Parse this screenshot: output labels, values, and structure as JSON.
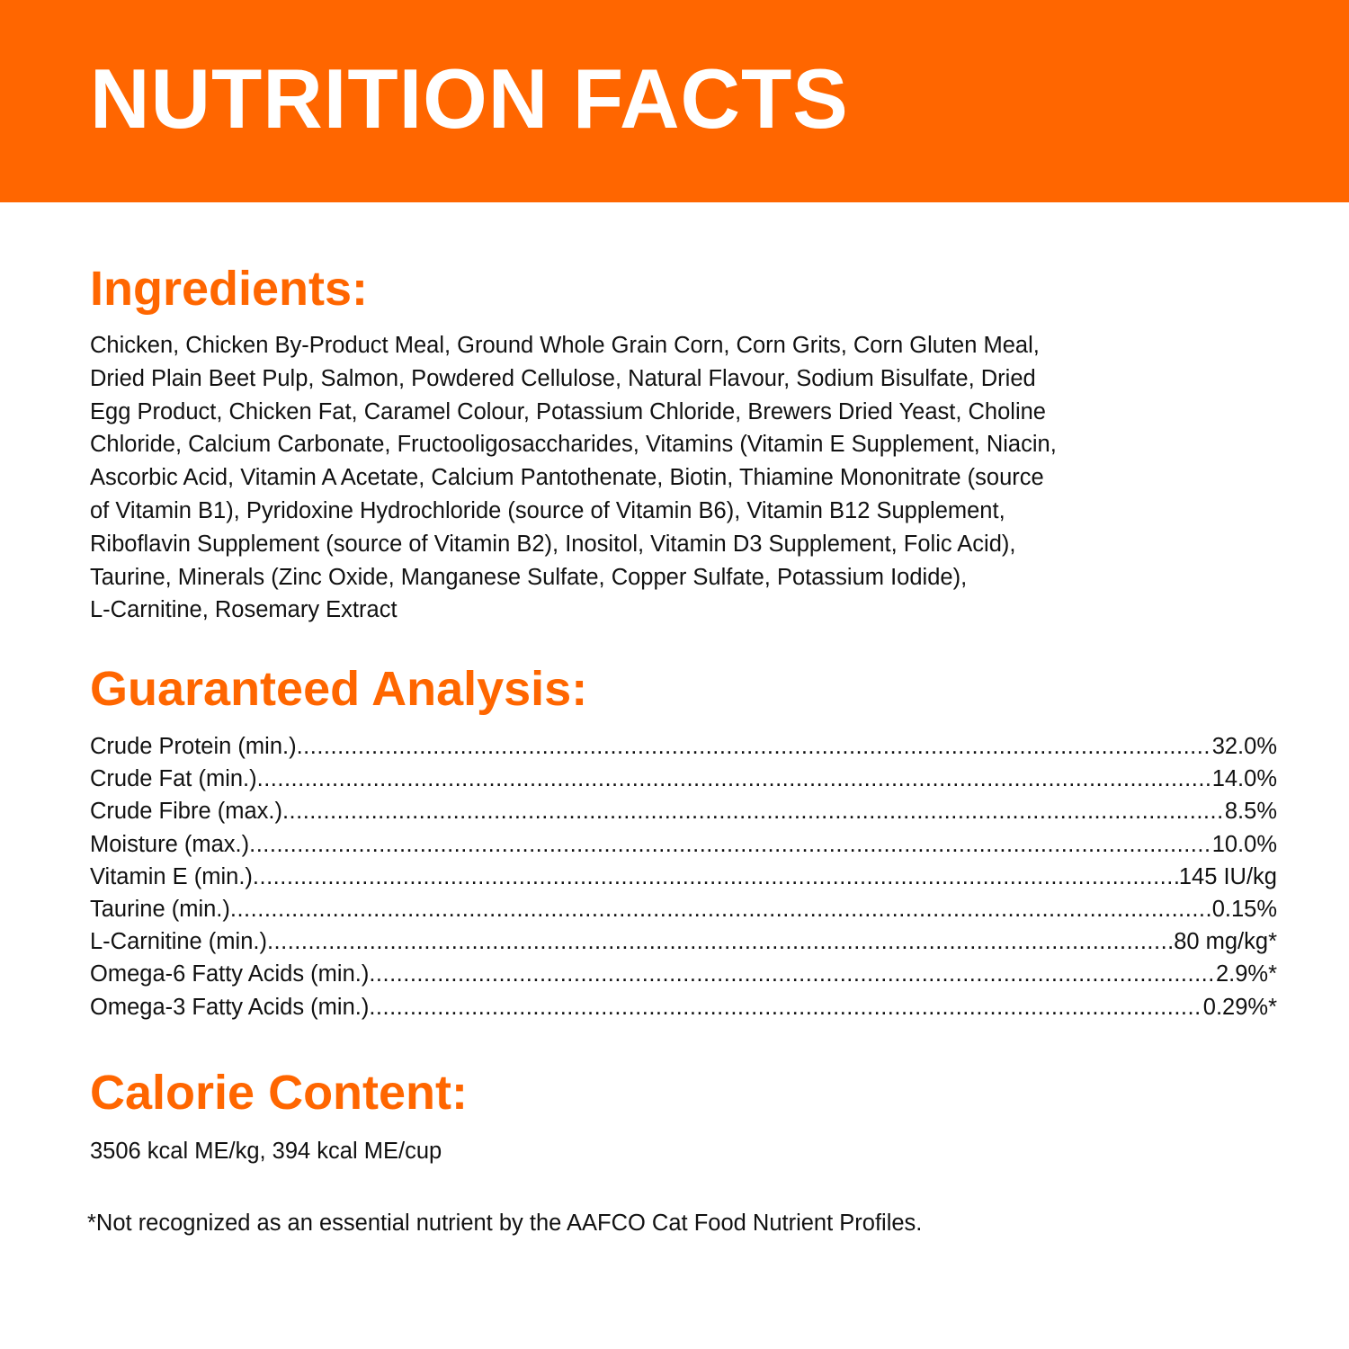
{
  "header": {
    "title": "NUTRITION FACTS",
    "background_color": "#ff6600",
    "text_color": "#ffffff"
  },
  "accent_color": "#ff6600",
  "ingredients": {
    "heading": "Ingredients:",
    "lines": [
      "Chicken, Chicken By-Product Meal, Ground Whole Grain Corn, Corn Grits, Corn Gluten Meal,",
      "Dried Plain Beet Pulp, Salmon, Powdered Cellulose, Natural Flavour, Sodium Bisulfate, Dried",
      "Egg Product, Chicken Fat, Caramel Colour, Potassium Chloride, Brewers Dried Yeast, Choline",
      "Chloride, Calcium Carbonate, Fructooligosaccharides, Vitamins (Vitamin E Supplement, Niacin,",
      "Ascorbic Acid, Vitamin A Acetate, Calcium Pantothenate, Biotin, Thiamine Mononitrate (source",
      "of Vitamin B1), Pyridoxine Hydrochloride (source of Vitamin B6), Vitamin B12 Supplement,",
      "Riboflavin Supplement (source of Vitamin B2), Inositol, Vitamin D3 Supplement, Folic Acid),",
      "Taurine, Minerals (Zinc Oxide, Manganese Sulfate, Copper Sulfate, Potassium Iodide),",
      "L-Carnitine, Rosemary Extract"
    ]
  },
  "guaranteed_analysis": {
    "heading": "Guaranteed Analysis:",
    "rows": [
      {
        "label": "Crude Protein (min.)",
        "value": "32.0%"
      },
      {
        "label": "Crude Fat (min.)",
        "value": "14.0%"
      },
      {
        "label": "Crude Fibre (max.)",
        "value": "8.5%"
      },
      {
        "label": "Moisture (max.)",
        "value": "10.0%"
      },
      {
        "label": "Vitamin E (min.)",
        "value": "145 IU/kg"
      },
      {
        "label": "Taurine (min.)",
        "value": "0.15%"
      },
      {
        "label": "L-Carnitine (min.)",
        "value": "80 mg/kg*"
      },
      {
        "label": "Omega-6 Fatty Acids (min.)",
        "value": "2.9%*"
      },
      {
        "label": "Omega-3 Fatty Acids (min.)",
        "value": "0.29%*"
      }
    ]
  },
  "calorie_content": {
    "heading": "Calorie Content:",
    "text": "3506 kcal ME/kg, 394 kcal ME/cup"
  },
  "footnote": "*Not recognized as an essential nutrient by the AAFCO Cat Food Nutrient Profiles."
}
